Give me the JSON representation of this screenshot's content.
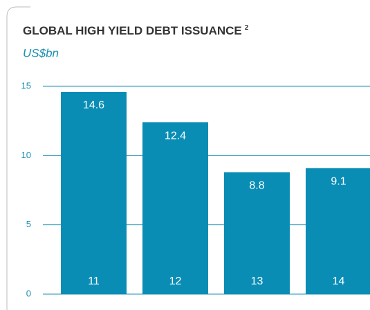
{
  "chart_data": {
    "type": "bar",
    "title": "GLOBAL HIGH YIELD DEBT ISSUANCE",
    "title_superscript": "2",
    "subtitle": "US$bn",
    "categories": [
      "11",
      "12",
      "13",
      "14"
    ],
    "values": [
      14.6,
      12.4,
      8.8,
      9.1
    ],
    "color": "#0a8db5",
    "ylim": [
      0,
      15
    ],
    "yticks": [
      0,
      5,
      10,
      15
    ],
    "grid": true
  }
}
